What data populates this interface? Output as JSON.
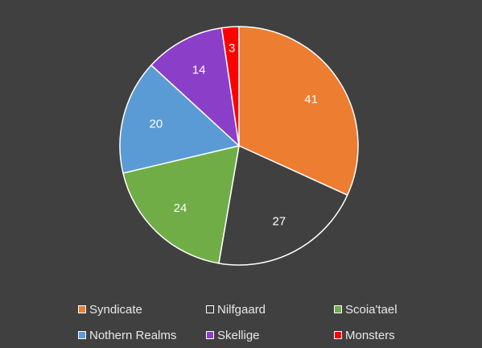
{
  "chart_data": {
    "type": "pie",
    "categories": [
      "Syndicate",
      "Nilfgaard",
      "Scoia'tael",
      "Nothern Realms",
      "Skellige",
      "Monsters"
    ],
    "values": [
      41,
      27,
      24,
      20,
      14,
      3
    ],
    "colors": [
      "#ED7D31",
      "#404040",
      "#70AD47",
      "#5B9BD5",
      "#8B3FC8",
      "#FF0000"
    ],
    "data_labels": [
      "41",
      "27",
      "24",
      "20",
      "14",
      "3"
    ],
    "title": "",
    "legend_position": "bottom",
    "start_angle_degrees": 0,
    "direction": "clockwise"
  },
  "legend": {
    "items": [
      {
        "label": "Syndicate",
        "color": "#ED7D31"
      },
      {
        "label": "Nilfgaard",
        "color": "#404040"
      },
      {
        "label": "Scoia'tael",
        "color": "#70AD47"
      },
      {
        "label": "Nothern Realms",
        "color": "#5B9BD5"
      },
      {
        "label": "Skellige",
        "color": "#8B3FC8"
      },
      {
        "label": "Monsters",
        "color": "#FF0000"
      }
    ]
  }
}
